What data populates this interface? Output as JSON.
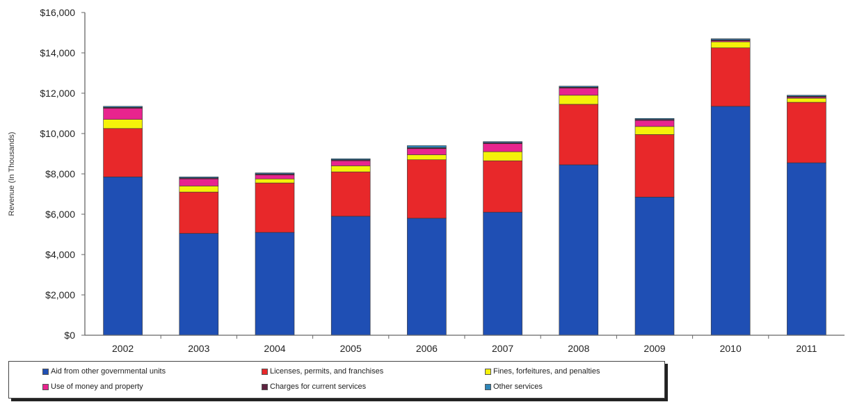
{
  "chart_data": {
    "type": "bar",
    "stacked": true,
    "ylabel": "Revenue   (In Thousands)",
    "xlabel": "",
    "ylim": [
      0,
      16000
    ],
    "ytick_step": 2000,
    "ytick_labels": [
      "$0",
      "$2,000",
      "$4,000",
      "$6,000",
      "$8,000",
      "$10,000",
      "$12,000",
      "$14,000",
      "$16,000"
    ],
    "categories": [
      "2002",
      "2003",
      "2004",
      "2005",
      "2006",
      "2007",
      "2008",
      "2009",
      "2010",
      "2011"
    ],
    "grid": false,
    "legend_position": "bottom",
    "series": [
      {
        "name": "Aid from other governmental units",
        "color": "#1f4fb4",
        "values": [
          7850,
          5050,
          5100,
          5900,
          5800,
          6100,
          8450,
          6850,
          11350,
          8550
        ]
      },
      {
        "name": "Licenses, permits, and franchises",
        "color": "#e8282a",
        "values": [
          2400,
          2050,
          2450,
          2200,
          2900,
          2550,
          3000,
          3100,
          2900,
          3000
        ]
      },
      {
        "name": "Fines, forfeitures, and penalties",
        "color": "#f5f20a",
        "values": [
          450,
          300,
          200,
          300,
          250,
          450,
          450,
          400,
          300,
          200
        ]
      },
      {
        "name": "Use of money and property",
        "color": "#e8248e",
        "values": [
          550,
          350,
          200,
          250,
          300,
          400,
          350,
          300,
          50,
          50
        ]
      },
      {
        "name": "Charges for current services",
        "color": "#5e2340",
        "values": [
          50,
          50,
          50,
          50,
          50,
          50,
          50,
          50,
          50,
          50
        ]
      },
      {
        "name": "Other services",
        "color": "#2e86b8",
        "values": [
          50,
          50,
          50,
          50,
          100,
          50,
          50,
          50,
          50,
          50
        ]
      }
    ]
  }
}
